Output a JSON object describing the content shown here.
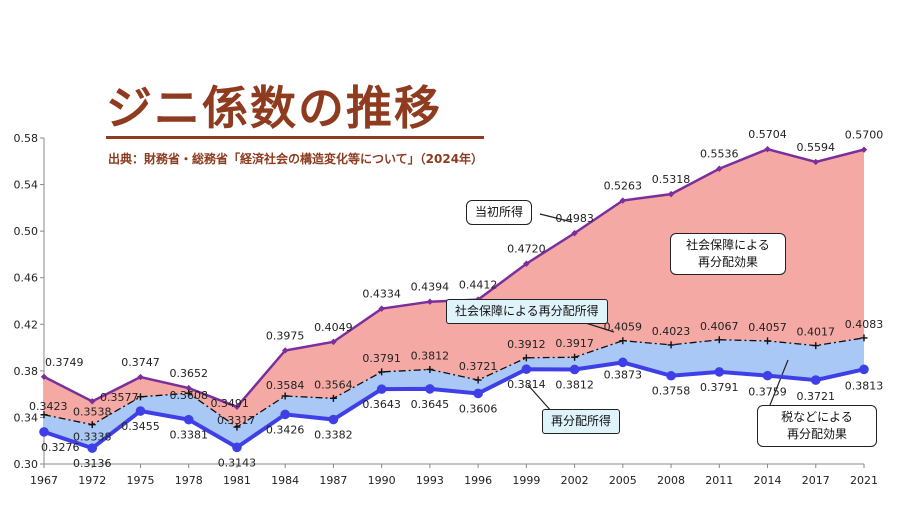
{
  "title": "ジニ係数の推移",
  "source": "出典：財務省・総務省「経済社会の構造変化等について」（2024年）",
  "colors": {
    "initial": "#7b2f9c",
    "redistributed": "#3f3fe8",
    "social_only": "#111111",
    "area_social": "#f5a9a4",
    "area_tax": "#a9c8f5",
    "title": "#8e3b1f"
  },
  "annotations": {
    "initial_label": "当初所得",
    "social_label": "社会保障による再分配所得",
    "redistributed_label": "再分配所得",
    "social_effect": "社会保障による\n再分配効果",
    "tax_effect": "税などによる\n再分配効果"
  },
  "chart_data": {
    "type": "line",
    "categories": [
      "1967",
      "1972",
      "1975",
      "1978",
      "1981",
      "1984",
      "1987",
      "1990",
      "1993",
      "1996",
      "1999",
      "2002",
      "2005",
      "2008",
      "2011",
      "2014",
      "2017",
      "2021"
    ],
    "ylim": [
      0.3,
      0.58
    ],
    "yticks": [
      "0.30",
      "0.34",
      "0.38",
      "0.42",
      "0.46",
      "0.50",
      "0.54",
      "0.58"
    ],
    "series": [
      {
        "name": "当初所得",
        "values": [
          0.3749,
          0.3538,
          0.3747,
          0.3652,
          0.3491,
          0.3975,
          0.4049,
          0.4334,
          0.4394,
          0.4412,
          0.472,
          0.4983,
          0.5263,
          0.5318,
          0.5536,
          0.5704,
          0.5594,
          0.57
        ],
        "labels": [
          "0.3749",
          "0.3538",
          "0.3747",
          "0.3652",
          "0.3491",
          "0.3975",
          "0.4049",
          "0.4334",
          "0.4394",
          "0.4412",
          "0.4720",
          "0.4983",
          "0.5263",
          "0.5318",
          "0.5536",
          "0.5704",
          "0.5594",
          "0.5700"
        ]
      },
      {
        "name": "社会保障による再分配所得",
        "values": [
          0.3423,
          0.3338,
          0.3577,
          0.3608,
          0.3317,
          0.3584,
          0.3564,
          0.3791,
          0.3812,
          0.3721,
          0.3912,
          0.3917,
          0.4059,
          0.4023,
          0.4067,
          0.4057,
          0.4017,
          0.4083
        ],
        "labels": [
          "0.3423",
          "0.3338",
          "0.3577",
          "0.3608",
          "0.3317",
          "0.3584",
          "0.3564",
          "0.3791",
          "0.3812",
          "0.3721",
          "0.3912",
          "0.3917",
          "0.4059",
          "0.4023",
          "0.4067",
          "0.4057",
          "0.4017",
          "0.4083"
        ]
      },
      {
        "name": "再分配所得",
        "values": [
          0.3276,
          0.3136,
          0.3455,
          0.3381,
          0.3143,
          0.3426,
          0.3382,
          0.3643,
          0.3645,
          0.3606,
          0.3814,
          0.3812,
          0.3873,
          0.3758,
          0.3791,
          0.3759,
          0.3721,
          0.3813
        ],
        "labels": [
          "0.3276",
          "0.3136",
          "0.3455",
          "0.3381",
          "0.3143",
          "0.3426",
          "0.3382",
          "0.3643",
          "0.3645",
          "0.3606",
          "0.3814",
          "0.3812",
          "0.3873",
          "0.3758",
          "0.3791",
          "0.3759",
          "0.3721",
          "0.3813"
        ]
      }
    ]
  }
}
